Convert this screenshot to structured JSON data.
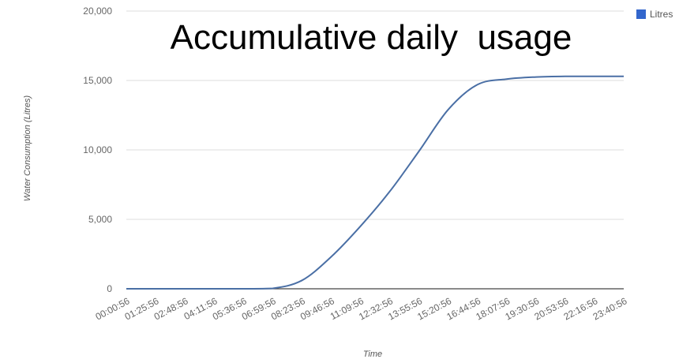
{
  "chart_data": {
    "type": "line",
    "title": "Accumulative daily  usage",
    "xlabel": "Time",
    "ylabel": "Water Consumption (Litres)",
    "ylim": [
      0,
      20000
    ],
    "y_ticks": [
      "0",
      "5,000",
      "10,000",
      "15,000",
      "20,000"
    ],
    "y_tick_values": [
      0,
      5000,
      10000,
      15000,
      20000
    ],
    "categories": [
      "00:00:56",
      "01:25:56",
      "02:48:56",
      "04:11:56",
      "05:36:56",
      "06:59:56",
      "08:23:56",
      "09:46:56",
      "11:09:56",
      "12:32:56",
      "13:55:56",
      "15:20:56",
      "16:44:56",
      "18:07:56",
      "19:30:56",
      "20:53:56",
      "22:16:56",
      "23:40:56"
    ],
    "grid": true,
    "legend": "top-right",
    "series": [
      {
        "name": "Litres",
        "color": "#4a6fa5",
        "values": [
          0,
          0,
          0,
          0,
          0,
          30,
          600,
          2300,
          4500,
          7000,
          9900,
          12900,
          14700,
          15100,
          15250,
          15300,
          15300,
          15300
        ]
      }
    ]
  }
}
